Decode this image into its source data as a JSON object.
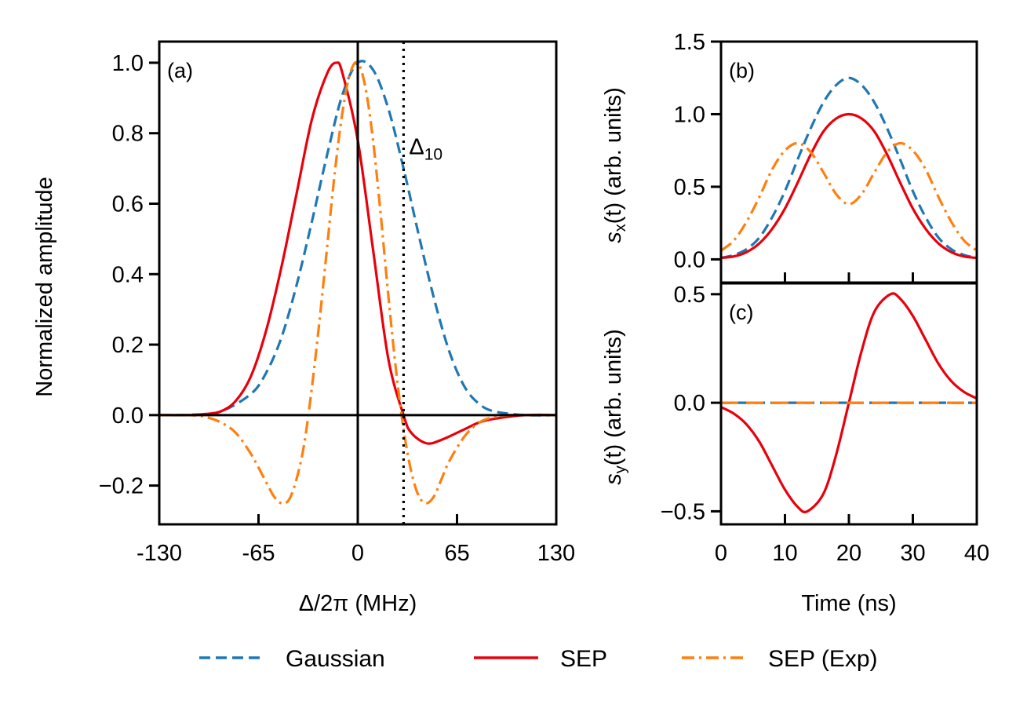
{
  "chart_data": [
    {
      "id": "a",
      "type": "line",
      "panel_label": "(a)",
      "xlabel": "Δ/2π (MHz)",
      "ylabel": "Normalized amplitude",
      "xlim": [
        -130,
        130
      ],
      "ylim": [
        -0.31,
        1.06
      ],
      "xticks": [
        -130,
        -65,
        0,
        65,
        130
      ],
      "xtick_labels": [
        "-130",
        "-65",
        "0",
        "65",
        "130"
      ],
      "yticks": [
        -0.2,
        0.0,
        0.2,
        0.4,
        0.6,
        0.8,
        1.0
      ],
      "ytick_labels": [
        "−0.2",
        "0.0",
        "0.2",
        "0.4",
        "0.6",
        "0.8",
        "1.0"
      ],
      "reference_lines": {
        "horizontal_y": 0,
        "vertical_x": 0
      },
      "annotation": {
        "text": "Δ",
        "subscript": "10",
        "x": 30
      },
      "series": [
        {
          "name": "Gaussian",
          "color": "#1f77b4",
          "dash": "dashed",
          "x": [
            -130,
            -110,
            -90,
            -70,
            -60,
            -50,
            -40,
            -30,
            -20,
            -10,
            0,
            10,
            20,
            30,
            40,
            50,
            60,
            70,
            80,
            90,
            110,
            130
          ],
          "y": [
            0,
            0.001,
            0.01,
            0.06,
            0.12,
            0.22,
            0.37,
            0.55,
            0.74,
            0.91,
            1.0,
            0.98,
            0.87,
            0.7,
            0.51,
            0.33,
            0.18,
            0.08,
            0.03,
            0.01,
            0,
            0
          ]
        },
        {
          "name": "SEP",
          "color": "#e8000b",
          "dash": "solid",
          "x": [
            -130,
            -110,
            -100,
            -90,
            -80,
            -70,
            -60,
            -50,
            -40,
            -30,
            -20,
            -14,
            -10,
            0,
            10,
            20,
            30,
            35,
            45,
            55,
            70,
            80,
            90,
            110,
            130
          ],
          "y": [
            0,
            0,
            0.003,
            0.01,
            0.04,
            0.11,
            0.24,
            0.42,
            0.63,
            0.84,
            0.97,
            1.0,
            0.97,
            0.78,
            0.47,
            0.16,
            0.0,
            -0.05,
            -0.08,
            -0.07,
            -0.04,
            -0.02,
            -0.01,
            0,
            0
          ]
        },
        {
          "name": "SEP (Exp)",
          "color": "#ff7f0e",
          "dash": "dashdot",
          "x": [
            -130,
            -110,
            -100,
            -90,
            -80,
            -70,
            -60,
            -55,
            -50,
            -45,
            -40,
            -35,
            -30,
            -25,
            -20,
            -15,
            -10,
            -5,
            0,
            5,
            10,
            15,
            20,
            25,
            30,
            35,
            40,
            45,
            50,
            55,
            60,
            70,
            80,
            90,
            100,
            110,
            130
          ],
          "y": [
            0,
            0,
            -0.005,
            -0.02,
            -0.05,
            -0.11,
            -0.19,
            -0.23,
            -0.25,
            -0.24,
            -0.18,
            -0.08,
            0.08,
            0.27,
            0.48,
            0.69,
            0.86,
            0.97,
            1.0,
            0.93,
            0.78,
            0.57,
            0.34,
            0.13,
            -0.04,
            -0.16,
            -0.23,
            -0.25,
            -0.23,
            -0.18,
            -0.13,
            -0.06,
            -0.02,
            -0.005,
            0,
            0,
            0
          ]
        }
      ]
    },
    {
      "id": "b",
      "type": "line",
      "panel_label": "(b)",
      "ylabel_main": "s",
      "ylabel_sub": "x",
      "ylabel_rest": "(t) (arb. units)",
      "xlim": [
        0,
        40
      ],
      "ylim": [
        -0.16,
        1.5
      ],
      "xticks": [
        0,
        10,
        20,
        30,
        40
      ],
      "yticks": [
        0.0,
        0.5,
        1.0,
        1.5
      ],
      "ytick_labels": [
        "0.0",
        "0.5",
        "1.0",
        "1.5"
      ],
      "series": [
        {
          "name": "Gaussian",
          "color": "#1f77b4",
          "dash": "dashed",
          "x": [
            0,
            2,
            4,
            6,
            8,
            10,
            12,
            14,
            16,
            18,
            20,
            22,
            24,
            26,
            28,
            30,
            32,
            34,
            36,
            38,
            40
          ],
          "y": [
            0.01,
            0.03,
            0.07,
            0.15,
            0.29,
            0.47,
            0.69,
            0.9,
            1.08,
            1.2,
            1.25,
            1.2,
            1.08,
            0.9,
            0.69,
            0.47,
            0.29,
            0.15,
            0.07,
            0.03,
            0.01
          ]
        },
        {
          "name": "SEP",
          "color": "#e8000b",
          "dash": "solid",
          "x": [
            0,
            2,
            4,
            6,
            8,
            10,
            12,
            14,
            16,
            18,
            20,
            22,
            24,
            26,
            28,
            30,
            32,
            34,
            36,
            38,
            40
          ],
          "y": [
            0.01,
            0.02,
            0.05,
            0.11,
            0.21,
            0.35,
            0.53,
            0.72,
            0.88,
            0.97,
            1.0,
            0.97,
            0.88,
            0.72,
            0.53,
            0.35,
            0.21,
            0.11,
            0.05,
            0.02,
            0.01
          ]
        },
        {
          "name": "SEP (Exp)",
          "color": "#ff7f0e",
          "dash": "dashdot",
          "x": [
            0,
            2,
            4,
            6,
            8,
            10,
            12,
            14,
            16,
            18,
            20,
            22,
            24,
            26,
            28,
            30,
            32,
            34,
            36,
            38,
            40
          ],
          "y": [
            0.06,
            0.13,
            0.26,
            0.43,
            0.62,
            0.75,
            0.8,
            0.74,
            0.6,
            0.45,
            0.38,
            0.45,
            0.6,
            0.74,
            0.8,
            0.75,
            0.62,
            0.43,
            0.26,
            0.13,
            0.06
          ]
        }
      ]
    },
    {
      "id": "c",
      "type": "line",
      "panel_label": "(c)",
      "xlabel": "Time (ns)",
      "ylabel_main": "s",
      "ylabel_sub": "y",
      "ylabel_rest": "(t) (arb. units)",
      "xlim": [
        0,
        40
      ],
      "ylim": [
        -0.56,
        0.55
      ],
      "xticks": [
        0,
        10,
        20,
        30,
        40
      ],
      "xtick_labels": [
        "0",
        "10",
        "20",
        "30",
        "40"
      ],
      "yticks": [
        -0.5,
        0.0,
        0.5
      ],
      "ytick_labels": [
        "−0.5",
        "0.0",
        "0.5"
      ],
      "series": [
        {
          "name": "Gaussian",
          "color": "#1f77b4",
          "dash": "dashed",
          "x": [
            0,
            40
          ],
          "y": [
            0,
            0
          ]
        },
        {
          "name": "SEP",
          "color": "#e8000b",
          "dash": "solid",
          "x": [
            0,
            2,
            4,
            6,
            8,
            10,
            12,
            13.5,
            16,
            18,
            20,
            22,
            24,
            26.5,
            28,
            30,
            32,
            34,
            36,
            38,
            40
          ],
          "y": [
            -0.02,
            -0.05,
            -0.1,
            -0.18,
            -0.29,
            -0.4,
            -0.48,
            -0.5,
            -0.42,
            -0.24,
            0.0,
            0.24,
            0.42,
            0.5,
            0.48,
            0.4,
            0.29,
            0.18,
            0.1,
            0.05,
            0.02
          ]
        },
        {
          "name": "SEP (Exp)",
          "color": "#ff7f0e",
          "dash": "longdash",
          "x": [
            0,
            40
          ],
          "y": [
            0,
            0
          ]
        }
      ]
    }
  ],
  "legend": {
    "items": [
      {
        "label": "Gaussian",
        "color": "#1f77b4",
        "dash": "dashed"
      },
      {
        "label": "SEP",
        "color": "#e8000b",
        "dash": "solid"
      },
      {
        "label": "SEP (Exp)",
        "color": "#ff7f0e",
        "dash": "dashdot"
      }
    ]
  }
}
